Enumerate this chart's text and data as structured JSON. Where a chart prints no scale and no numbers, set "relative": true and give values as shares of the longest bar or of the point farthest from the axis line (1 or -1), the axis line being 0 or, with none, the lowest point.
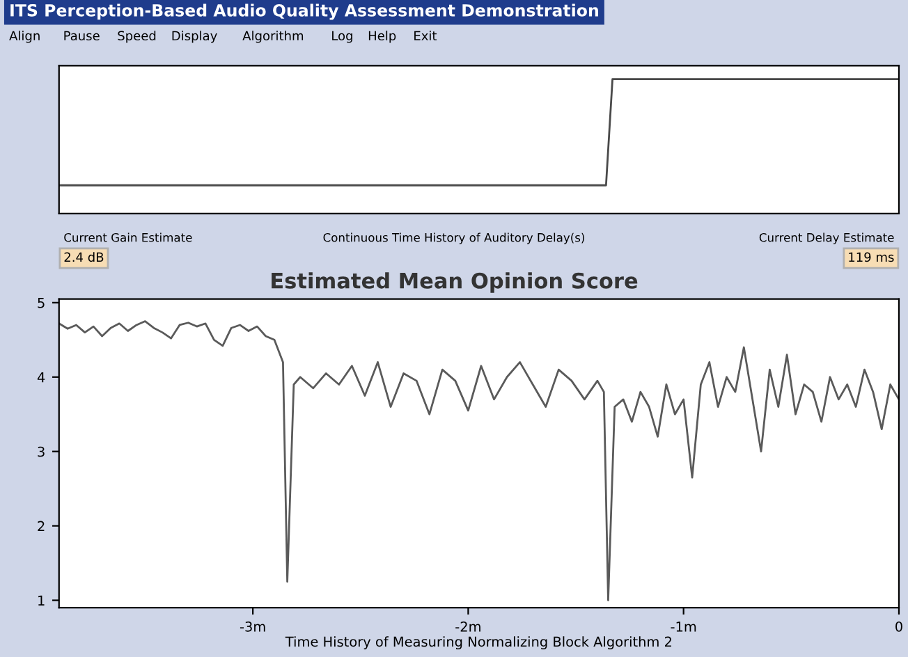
{
  "chart_data": [
    {
      "type": "line",
      "title": "ITS Perception-Based Audio Quality Assessment Demonstration",
      "relative": true,
      "tick_labels": false,
      "xlim": [
        -3.9,
        0
      ],
      "annotations": [
        "Align",
        "Pause",
        "Speed",
        "Display",
        "Algorithm",
        "Log",
        "Help",
        "Exit",
        "Current Gain Estimate",
        "2.4 dB",
        "Continuous Time History of Auditory Delay(s)",
        "Current Delay Estimate",
        "119 ms"
      ],
      "series": [
        {
          "color": "#4a4a4a",
          "x": [
            -3.9,
            -1.36,
            -1.33,
            0
          ],
          "values": [
            0.21,
            0.21,
            1,
            1
          ]
        }
      ]
    },
    {
      "type": "line",
      "title": "Estimated Mean Opinion Score",
      "xlabel": "Time History of Measuring Normalizing Block Algorithm 2",
      "xlim": [
        -3.9,
        0
      ],
      "ylim": [
        0.9,
        5.05
      ],
      "xticks": [
        {
          "value": -3,
          "label": "-3m"
        },
        {
          "value": -2,
          "label": "-2m"
        },
        {
          "value": -1,
          "label": "-1m"
        },
        0
      ],
      "yticks": [
        1,
        2,
        3,
        4,
        5
      ],
      "series": [
        {
          "color": "#5a5a5a",
          "x": [
            -3.9,
            -3.86,
            -3.82,
            -3.78,
            -3.74,
            -3.7,
            -3.66,
            -3.62,
            -3.58,
            -3.54,
            -3.5,
            -3.46,
            -3.42,
            -3.38,
            -3.34,
            -3.3,
            -3.26,
            -3.22,
            -3.18,
            -3.14,
            -3.1,
            -3.06,
            -3.02,
            -2.98,
            -2.94,
            -2.9,
            -2.86,
            -2.84,
            -2.81,
            -2.78,
            -2.72,
            -2.66,
            -2.6,
            -2.54,
            -2.48,
            -2.42,
            -2.36,
            -2.3,
            -2.24,
            -2.18,
            -2.12,
            -2.06,
            -2.0,
            -1.94,
            -1.88,
            -1.82,
            -1.76,
            -1.7,
            -1.64,
            -1.58,
            -1.52,
            -1.46,
            -1.4,
            -1.37,
            -1.35,
            -1.32,
            -1.28,
            -1.24,
            -1.2,
            -1.16,
            -1.12,
            -1.08,
            -1.04,
            -1.0,
            -0.96,
            -0.92,
            -0.88,
            -0.84,
            -0.8,
            -0.76,
            -0.72,
            -0.68,
            -0.64,
            -0.6,
            -0.56,
            -0.52,
            -0.48,
            -0.44,
            -0.4,
            -0.36,
            -0.32,
            -0.28,
            -0.24,
            -0.2,
            -0.16,
            -0.12,
            -0.08,
            -0.04,
            0
          ],
          "values": [
            4.72,
            4.65,
            4.7,
            4.6,
            4.68,
            4.55,
            4.66,
            4.72,
            4.62,
            4.7,
            4.75,
            4.66,
            4.6,
            4.52,
            4.7,
            4.73,
            4.68,
            4.72,
            4.5,
            4.42,
            4.66,
            4.7,
            4.62,
            4.68,
            4.55,
            4.5,
            4.2,
            1.25,
            3.9,
            4.0,
            3.85,
            4.05,
            3.9,
            4.15,
            3.75,
            4.2,
            3.6,
            4.05,
            3.95,
            3.5,
            4.1,
            3.95,
            3.55,
            4.15,
            3.7,
            4.0,
            4.2,
            3.9,
            3.6,
            4.1,
            3.95,
            3.7,
            3.95,
            3.8,
            1.0,
            3.6,
            3.7,
            3.4,
            3.8,
            3.6,
            3.2,
            3.9,
            3.5,
            3.7,
            2.65,
            3.9,
            4.2,
            3.6,
            4.0,
            3.8,
            4.4,
            3.7,
            3.0,
            4.1,
            3.6,
            4.3,
            3.5,
            3.9,
            3.8,
            3.4,
            4.0,
            3.7,
            3.9,
            3.6,
            4.1,
            3.8,
            3.3,
            3.9,
            3.7
          ]
        }
      ]
    }
  ]
}
